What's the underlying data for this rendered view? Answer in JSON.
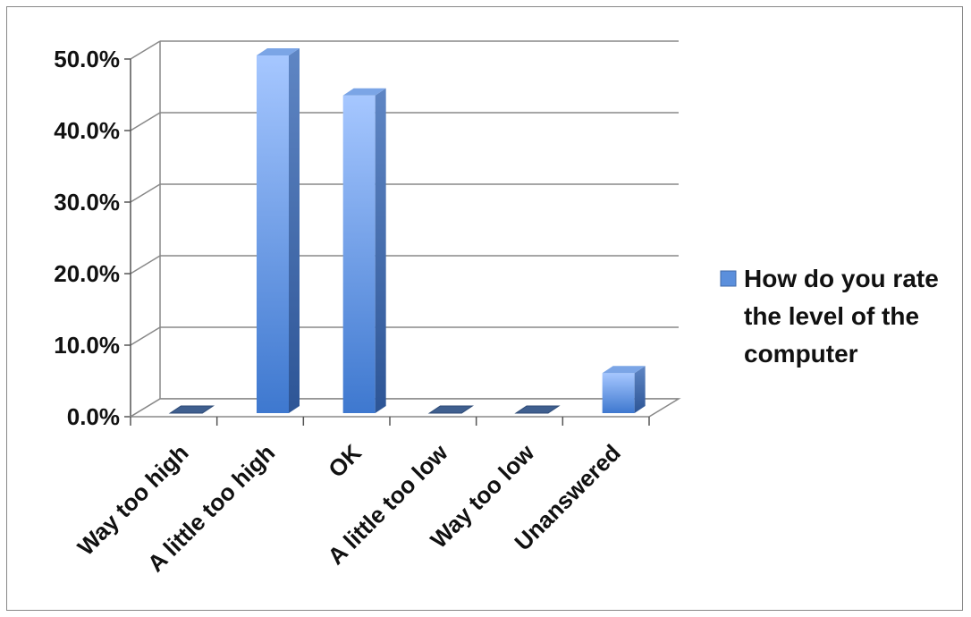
{
  "chart_data": {
    "type": "bar",
    "title": "",
    "xlabel": "",
    "ylabel": "",
    "categories": [
      "Way too high",
      "A little too high",
      "OK",
      "A little too low",
      "Way too low",
      "Unanswered"
    ],
    "series": [
      {
        "name": "How do you rate the level of the computer",
        "values": [
          0.0,
          50.0,
          44.4,
          0.0,
          0.0,
          5.6
        ]
      }
    ],
    "yticks": [
      "0.0%",
      "10.0%",
      "20.0%",
      "30.0%",
      "40.0%",
      "50.0%"
    ],
    "ylim": [
      0,
      50
    ],
    "grid": true,
    "legend_position": "right",
    "colors": {
      "bar_front": "#5b8fdc",
      "bar_side": "#3f6aa8",
      "bar_top": "#7ba5e6",
      "grid": "#888888"
    }
  },
  "legend": {
    "lines": [
      "How do you rate",
      "the level of the",
      "computer"
    ]
  }
}
